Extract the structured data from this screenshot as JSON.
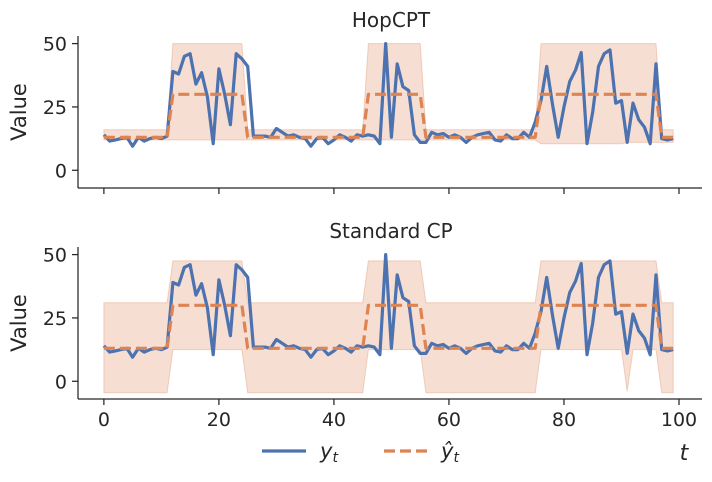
{
  "chart_data": [
    {
      "type": "line",
      "title": "HopCPT",
      "xlabel": "",
      "ylabel": "Value",
      "xlim": [
        -4.5,
        104
      ],
      "ylim": [
        -7,
        53
      ],
      "xticks": [
        0,
        20,
        40,
        60,
        80,
        100
      ],
      "yticks": [
        0,
        25,
        50
      ],
      "show_xtick_labels": false,
      "grid": false,
      "interval_color": "#e8a88c",
      "interval": {
        "x": [
          0,
          11,
          12,
          24,
          25,
          45,
          46,
          55,
          56,
          75,
          76,
          90,
          91,
          95,
          96,
          97,
          99
        ],
        "lower": [
          12,
          12,
          12,
          12,
          12,
          12,
          12,
          12,
          12,
          12,
          10.5,
          10.5,
          11,
          11,
          11,
          11,
          11
        ],
        "upper": [
          16,
          16,
          50,
          50,
          16,
          16,
          50,
          50,
          16,
          16,
          50,
          50,
          50,
          50,
          50,
          16,
          16
        ]
      },
      "series": [
        {
          "name": "y_t",
          "label_text": "y",
          "label_sub": "t",
          "color": "#4c72b0",
          "style": "solid",
          "x": [
            0,
            1,
            2,
            3,
            4,
            5,
            6,
            7,
            8,
            9,
            10,
            11,
            12,
            13,
            14,
            15,
            16,
            17,
            18,
            19,
            20,
            21,
            22,
            23,
            24,
            25,
            26,
            27,
            28,
            29,
            30,
            31,
            32,
            33,
            34,
            35,
            36,
            37,
            38,
            39,
            40,
            41,
            42,
            43,
            44,
            45,
            46,
            47,
            48,
            49,
            50,
            51,
            52,
            53,
            54,
            55,
            56,
            57,
            58,
            59,
            60,
            61,
            62,
            63,
            64,
            65,
            66,
            67,
            68,
            69,
            70,
            71,
            72,
            73,
            74,
            75,
            76,
            77,
            78,
            79,
            80,
            81,
            82,
            83,
            84,
            85,
            86,
            87,
            88,
            89,
            90,
            91,
            92,
            93,
            94,
            95,
            96,
            97,
            98,
            99
          ],
          "values": [
            14,
            11.5,
            12,
            12.5,
            13,
            9.5,
            13,
            11.5,
            12.5,
            13,
            12.5,
            13.5,
            39,
            38,
            45,
            46,
            34,
            38.5,
            29,
            10.5,
            40,
            30,
            18,
            46,
            44,
            41,
            13.5,
            13.5,
            13.5,
            13,
            16.5,
            15,
            13.5,
            14,
            13,
            12.5,
            9.5,
            12.5,
            13,
            10.5,
            12,
            14,
            13,
            11.5,
            14,
            13.5,
            14,
            13.5,
            10.5,
            50,
            13,
            42,
            33,
            31.5,
            14,
            11,
            11,
            15,
            14,
            14.5,
            13,
            14,
            13,
            11,
            13,
            14,
            14.5,
            15,
            12,
            11.5,
            14,
            12.5,
            12.5,
            15,
            13,
            19,
            27.5,
            41,
            26,
            13,
            25,
            35,
            39.5,
            46.5,
            10.5,
            23,
            41,
            46,
            47.5,
            26.5,
            27.5,
            11,
            26.5,
            20,
            17,
            10.5,
            42,
            12.5,
            12,
            12.5
          ]
        },
        {
          "name": "ŷ_t",
          "label_text": "ŷ",
          "label_sub": "t",
          "color": "#dd8452",
          "style": "dashed",
          "x": [
            0,
            11,
            12,
            24,
            25,
            45,
            46,
            55,
            56,
            75,
            76,
            96,
            97,
            99
          ],
          "values": [
            13,
            13,
            30,
            30,
            13,
            13,
            30,
            30,
            13,
            13,
            30,
            30,
            13,
            13
          ]
        }
      ]
    },
    {
      "type": "line",
      "title": "Standard CP",
      "xlabel": "t",
      "ylabel": "Value",
      "xlim": [
        -4.5,
        104
      ],
      "ylim": [
        -7,
        53
      ],
      "xticks": [
        0,
        20,
        40,
        60,
        80,
        100
      ],
      "yticks": [
        0,
        25,
        50
      ],
      "show_xtick_labels": true,
      "grid": false,
      "interval_color": "#e8a88c",
      "interval": {
        "x": [
          0,
          11,
          12,
          24,
          25,
          45,
          46,
          55,
          56,
          75,
          76,
          90,
          91,
          92,
          95,
          96,
          97,
          99
        ],
        "lower": [
          -4.5,
          -4.5,
          12.5,
          12.5,
          -4.5,
          -4.5,
          12.5,
          12.5,
          -4.5,
          -4.5,
          12.5,
          12.5,
          -4,
          12.5,
          12.5,
          12.5,
          -4.5,
          -4.5
        ],
        "upper": [
          31,
          31,
          47.5,
          47.5,
          31,
          31,
          47.5,
          47.5,
          31,
          31,
          47.5,
          47.5,
          47.5,
          47.5,
          47.5,
          47.5,
          31,
          31
        ]
      },
      "series": [
        {
          "name": "y_t",
          "label_text": "y",
          "label_sub": "t",
          "color": "#4c72b0",
          "style": "solid",
          "x": [
            0,
            1,
            2,
            3,
            4,
            5,
            6,
            7,
            8,
            9,
            10,
            11,
            12,
            13,
            14,
            15,
            16,
            17,
            18,
            19,
            20,
            21,
            22,
            23,
            24,
            25,
            26,
            27,
            28,
            29,
            30,
            31,
            32,
            33,
            34,
            35,
            36,
            37,
            38,
            39,
            40,
            41,
            42,
            43,
            44,
            45,
            46,
            47,
            48,
            49,
            50,
            51,
            52,
            53,
            54,
            55,
            56,
            57,
            58,
            59,
            60,
            61,
            62,
            63,
            64,
            65,
            66,
            67,
            68,
            69,
            70,
            71,
            72,
            73,
            74,
            75,
            76,
            77,
            78,
            79,
            80,
            81,
            82,
            83,
            84,
            85,
            86,
            87,
            88,
            89,
            90,
            91,
            92,
            93,
            94,
            95,
            96,
            97,
            98,
            99
          ],
          "values": [
            14,
            11.5,
            12,
            12.5,
            13,
            9.5,
            13,
            11.5,
            12.5,
            13,
            12.5,
            13.5,
            39,
            38,
            45,
            46,
            34,
            38.5,
            29,
            10.5,
            40,
            30,
            18,
            46,
            44,
            41,
            13.5,
            13.5,
            13.5,
            13,
            16.5,
            15,
            13.5,
            14,
            13,
            12.5,
            9.5,
            12.5,
            13,
            10.5,
            12,
            14,
            13,
            11.5,
            14,
            13.5,
            14,
            13.5,
            10.5,
            50,
            13,
            42,
            33,
            31.5,
            14,
            11,
            11,
            15,
            14,
            14.5,
            13,
            14,
            13,
            11,
            13,
            14,
            14.5,
            15,
            12,
            11.5,
            14,
            12.5,
            12.5,
            15,
            13,
            19,
            27.5,
            41,
            26,
            13,
            25,
            35,
            39.5,
            46.5,
            10.5,
            23,
            41,
            46,
            47.5,
            26.5,
            27.5,
            11,
            26.5,
            20,
            17,
            10.5,
            42,
            12.5,
            12,
            12.5
          ]
        },
        {
          "name": "ŷ_t",
          "label_text": "ŷ",
          "label_sub": "t",
          "color": "#dd8452",
          "style": "dashed",
          "x": [
            0,
            11,
            12,
            24,
            25,
            45,
            46,
            55,
            56,
            75,
            76,
            96,
            97,
            99
          ],
          "values": [
            13,
            13,
            30,
            30,
            13,
            13,
            30,
            30,
            13,
            13,
            30,
            30,
            13,
            13
          ]
        }
      ]
    }
  ],
  "legend": {
    "placement": "bottom-center",
    "entries": [
      {
        "label_text": "y",
        "label_sub": "t",
        "color": "#4c72b0",
        "style": "solid"
      },
      {
        "label_text": "ŷ",
        "label_sub": "t",
        "color": "#dd8452",
        "style": "dashed"
      }
    ]
  }
}
